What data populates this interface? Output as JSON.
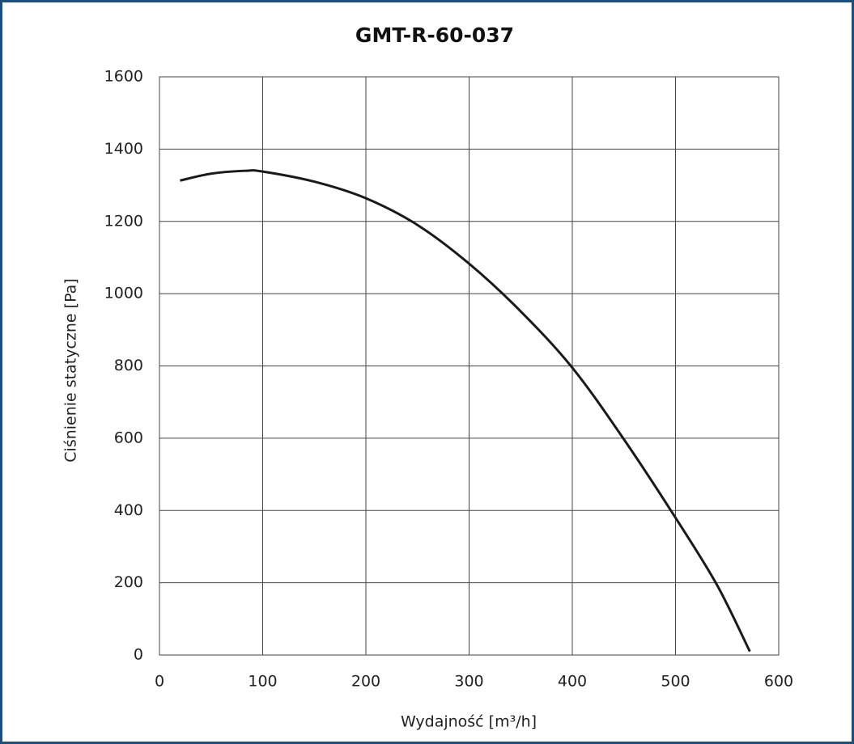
{
  "chart_data": {
    "type": "line",
    "title": "GMT-R-60-037",
    "x_label": "Wydajność [m³/h]",
    "y_label": "Ciśnienie statyczne [Pa]",
    "x": [
      20,
      50,
      83,
      100,
      150,
      200,
      250,
      300,
      350,
      400,
      450,
      500,
      540,
      572
    ],
    "series": [
      {
        "color": "#1a1a1a",
        "values": [
          1313,
          1332,
          1340,
          1338,
          1310,
          1264,
          1190,
          1083,
          951,
          795,
          597,
          380,
          195,
          10
        ]
      }
    ],
    "xlim": [
      0,
      600
    ],
    "xticks": [
      0,
      100,
      200,
      300,
      400,
      500,
      600
    ],
    "ylim": [
      0,
      1600
    ],
    "yticks": [
      0,
      200,
      400,
      600,
      800,
      1000,
      1200,
      1400,
      1600
    ],
    "grid": true
  }
}
